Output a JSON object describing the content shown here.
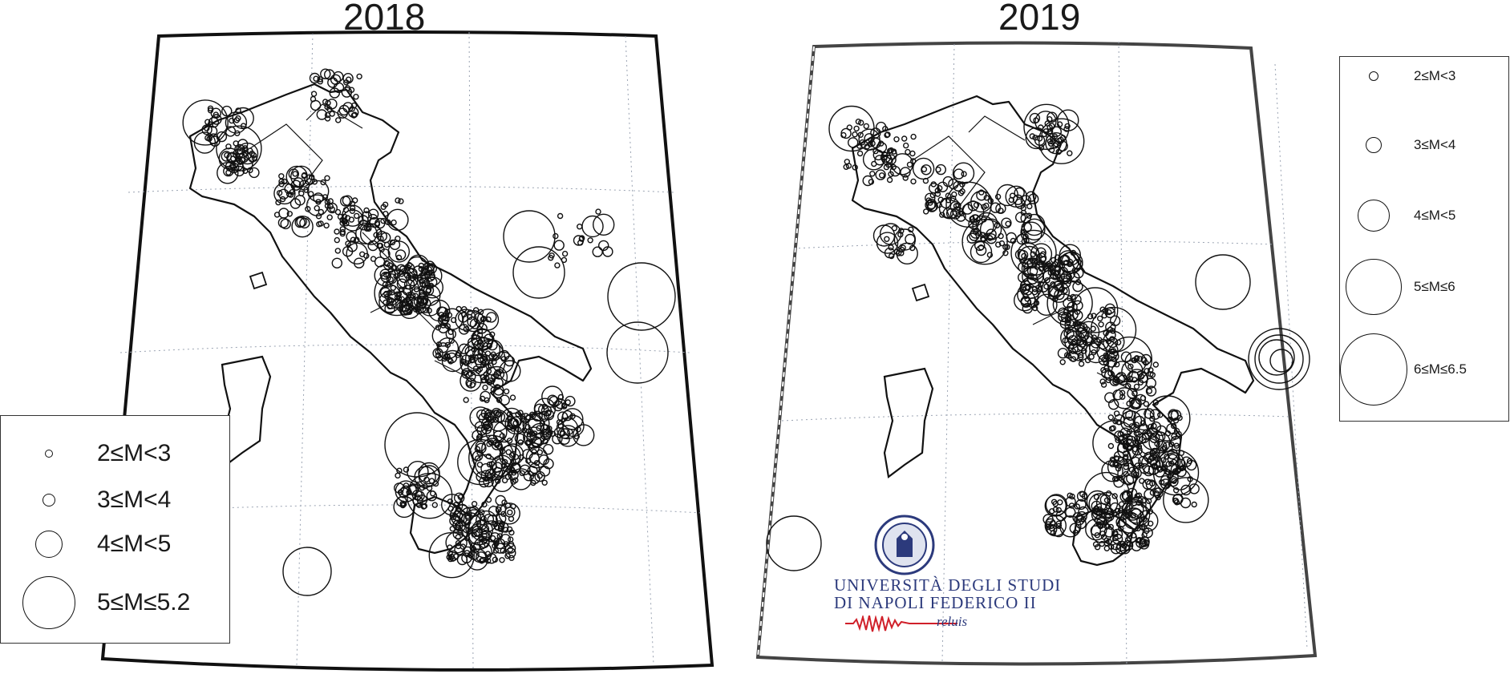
{
  "panels": [
    {
      "year": "2018",
      "legend": [
        {
          "label": "2≤M<3",
          "mag": 2
        },
        {
          "label": "3≤M<4",
          "mag": 3
        },
        {
          "label": "4≤M<5",
          "mag": 4
        },
        {
          "label": "5≤M≤5.2",
          "mag": 5
        }
      ]
    },
    {
      "year": "2019",
      "legend": [
        {
          "label": "2≤M<3",
          "mag": 2
        },
        {
          "label": "3≤M<4",
          "mag": 3
        },
        {
          "label": "4≤M<5",
          "mag": 4
        },
        {
          "label": "5≤M≤6",
          "mag": 5
        },
        {
          "label": "6≤M≤6.5",
          "mag": 6
        }
      ]
    }
  ],
  "logo": {
    "university_line1": "UNIVERSITÀ DEGLI STUDI",
    "university_line2": "DI NAPOLI FEDERICO II",
    "partner": "reluis"
  },
  "colors": {
    "ink": "#1a1a1a",
    "graticule": "#9aa3b2",
    "logo_blue": "#2c3a7c",
    "seismogram_red": "#d0202a"
  },
  "icons": [
    "university-seal-icon",
    "seismogram-icon"
  ]
}
